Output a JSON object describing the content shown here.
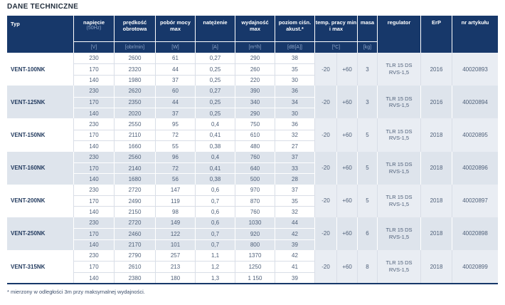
{
  "title": "DANE TECHNICZNE",
  "footnote": "* mierzony w odległości 3m przy maksymalnej wydajności.",
  "colors": {
    "header_bg": "#17386A",
    "row_alt_bg": "#DEE4EC",
    "merged_cell_bg": "#E9EDF3",
    "header_text": "#FFFFFF",
    "unit_text": "#8BA3C7",
    "body_text": "#4E5F78",
    "title_text": "#232F3D"
  },
  "table": {
    "headers": {
      "typ": "Typ",
      "cols": [
        {
          "label": "napięcie",
          "sub": "(50Hz)",
          "unit": "[V]"
        },
        {
          "label": "prędkość obrotowa",
          "unit": "[obr/min]"
        },
        {
          "label": "pobór mocy max",
          "unit": "[W]"
        },
        {
          "label": "natężenie",
          "unit": "[A]"
        },
        {
          "label": "wydajność max",
          "unit": "[m³/h]"
        },
        {
          "label": "poziom ciśn. akust.*",
          "unit": "[dB[A]]"
        }
      ],
      "temp": {
        "label": "temp. pracy min i max",
        "unit": "[ºC]"
      },
      "masa": {
        "label": "masa",
        "unit": "[kg]"
      },
      "regulator": "regulator",
      "erp": "ErP",
      "nr": "nr artykułu"
    },
    "groups": [
      {
        "typ": "VENT-100NK",
        "rows": [
          [
            "230",
            "2600",
            "61",
            "0,27",
            "290",
            "38"
          ],
          [
            "170",
            "2320",
            "44",
            "0,25",
            "260",
            "35"
          ],
          [
            "140",
            "1980",
            "37",
            "0,25",
            "220",
            "30"
          ]
        ],
        "temp_min": "-20",
        "temp_max": "+60",
        "masa": "3",
        "regulator": [
          "TLR 15 DS",
          "RVS-1,5"
        ],
        "erp": "2016",
        "nr": "40020893"
      },
      {
        "typ": "VENT-125NK",
        "rows": [
          [
            "230",
            "2620",
            "60",
            "0,27",
            "390",
            "36"
          ],
          [
            "170",
            "2350",
            "44",
            "0,25",
            "340",
            "34"
          ],
          [
            "140",
            "2020",
            "37",
            "0,25",
            "290",
            "30"
          ]
        ],
        "temp_min": "-20",
        "temp_max": "+60",
        "masa": "3",
        "regulator": [
          "TLR 15 DS",
          "RVS-1,5"
        ],
        "erp": "2016",
        "nr": "40020894"
      },
      {
        "typ": "VENT-150NK",
        "rows": [
          [
            "230",
            "2550",
            "95",
            "0,4",
            "750",
            "36"
          ],
          [
            "170",
            "2110",
            "72",
            "0,41",
            "610",
            "32"
          ],
          [
            "140",
            "1660",
            "55",
            "0,38",
            "480",
            "27"
          ]
        ],
        "temp_min": "-20",
        "temp_max": "+60",
        "masa": "5",
        "regulator": [
          "TLR 15 DS",
          "RVS-1,5"
        ],
        "erp": "2018",
        "nr": "40020895"
      },
      {
        "typ": "VENT-160NK",
        "rows": [
          [
            "230",
            "2560",
            "96",
            "0,4",
            "760",
            "37"
          ],
          [
            "170",
            "2140",
            "72",
            "0,41",
            "640",
            "33"
          ],
          [
            "140",
            "1680",
            "56",
            "0,38",
            "500",
            "28"
          ]
        ],
        "temp_min": "-20",
        "temp_max": "+60",
        "masa": "5",
        "regulator": [
          "TLR 15 DS",
          "RVS-1,5"
        ],
        "erp": "2018",
        "nr": "40020896"
      },
      {
        "typ": "VENT-200NK",
        "rows": [
          [
            "230",
            "2720",
            "147",
            "0,6",
            "970",
            "37"
          ],
          [
            "170",
            "2490",
            "119",
            "0,7",
            "870",
            "35"
          ],
          [
            "140",
            "2150",
            "98",
            "0,6",
            "760",
            "32"
          ]
        ],
        "temp_min": "-20",
        "temp_max": "+60",
        "masa": "5",
        "regulator": [
          "TLR 15 DS",
          "RVS-1,5"
        ],
        "erp": "2018",
        "nr": "40020897"
      },
      {
        "typ": "VENT-250NK",
        "rows": [
          [
            "230",
            "2720",
            "149",
            "0,6",
            "1030",
            "44"
          ],
          [
            "170",
            "2460",
            "122",
            "0,7",
            "920",
            "42"
          ],
          [
            "140",
            "2170",
            "101",
            "0,7",
            "800",
            "39"
          ]
        ],
        "temp_min": "-20",
        "temp_max": "+60",
        "masa": "6",
        "regulator": [
          "TLR 15 DS",
          "RVS-1,5"
        ],
        "erp": "2018",
        "nr": "40020898"
      },
      {
        "typ": "VENT-315NK",
        "rows": [
          [
            "230",
            "2790",
            "257",
            "1,1",
            "1370",
            "42"
          ],
          [
            "170",
            "2610",
            "213",
            "1,2",
            "1250",
            "41"
          ],
          [
            "140",
            "2380",
            "180",
            "1,3",
            "1 150",
            "39"
          ]
        ],
        "temp_min": "-20",
        "temp_max": "+60",
        "masa": "8",
        "regulator": [
          "TLR 15 DS",
          "RVS-1,5"
        ],
        "erp": "2018",
        "nr": "40020899"
      }
    ]
  }
}
